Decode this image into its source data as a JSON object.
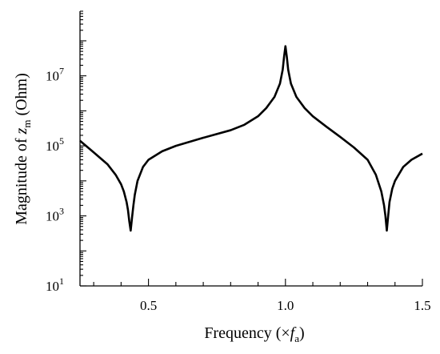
{
  "chart_data": {
    "type": "line",
    "title": "",
    "xlabel": {
      "prefix": "Frequency (×",
      "var": "f",
      "sub": "a",
      "suffix": ")"
    },
    "ylabel": {
      "prefix": "Magnitude of ",
      "var": "z",
      "sub": "m",
      "suffix": "  (Ohm)"
    },
    "xlim": [
      0.25,
      1.5
    ],
    "ylim": [
      10,
      700000000
    ],
    "yscale": "log",
    "grid": false,
    "x_ticks": [
      {
        "value": 0.5,
        "label": "0.5"
      },
      {
        "value": 1.0,
        "label": "1.0"
      },
      {
        "value": 1.5,
        "label": "1.5"
      }
    ],
    "y_ticks": [
      {
        "value": 10,
        "base": "10",
        "exp": "1"
      },
      {
        "value": 1000,
        "base": "10",
        "exp": "3"
      },
      {
        "value": 100000,
        "base": "10",
        "exp": "5"
      },
      {
        "value": 10000000,
        "base": "10",
        "exp": "7"
      }
    ],
    "series": [
      {
        "color": "#000000",
        "points": [
          [
            0.25,
            140000
          ],
          [
            0.3,
            65000
          ],
          [
            0.35,
            30000
          ],
          [
            0.38,
            15000
          ],
          [
            0.4,
            8000
          ],
          [
            0.41,
            5000
          ],
          [
            0.42,
            2500
          ],
          [
            0.425,
            1500
          ],
          [
            0.43,
            700
          ],
          [
            0.435,
            380
          ],
          [
            0.44,
            900
          ],
          [
            0.445,
            2000
          ],
          [
            0.45,
            4000
          ],
          [
            0.46,
            10000
          ],
          [
            0.48,
            25000
          ],
          [
            0.5,
            40000
          ],
          [
            0.55,
            70000
          ],
          [
            0.6,
            100000
          ],
          [
            0.7,
            170000
          ],
          [
            0.8,
            280000
          ],
          [
            0.85,
            400000
          ],
          [
            0.9,
            700000
          ],
          [
            0.93,
            1200000
          ],
          [
            0.96,
            2500000
          ],
          [
            0.98,
            6000000
          ],
          [
            0.99,
            15000000
          ],
          [
            0.995,
            35000000
          ],
          [
            1.0,
            70000000
          ],
          [
            1.005,
            35000000
          ],
          [
            1.01,
            15000000
          ],
          [
            1.02,
            6000000
          ],
          [
            1.04,
            2500000
          ],
          [
            1.07,
            1200000
          ],
          [
            1.1,
            700000
          ],
          [
            1.15,
            350000
          ],
          [
            1.2,
            180000
          ],
          [
            1.25,
            90000
          ],
          [
            1.3,
            40000
          ],
          [
            1.33,
            15000
          ],
          [
            1.35,
            5000
          ],
          [
            1.36,
            2000
          ],
          [
            1.365,
            1000
          ],
          [
            1.37,
            380
          ],
          [
            1.375,
            1000
          ],
          [
            1.38,
            2500
          ],
          [
            1.39,
            6000
          ],
          [
            1.4,
            10000
          ],
          [
            1.43,
            25000
          ],
          [
            1.46,
            40000
          ],
          [
            1.5,
            60000
          ]
        ]
      }
    ]
  }
}
